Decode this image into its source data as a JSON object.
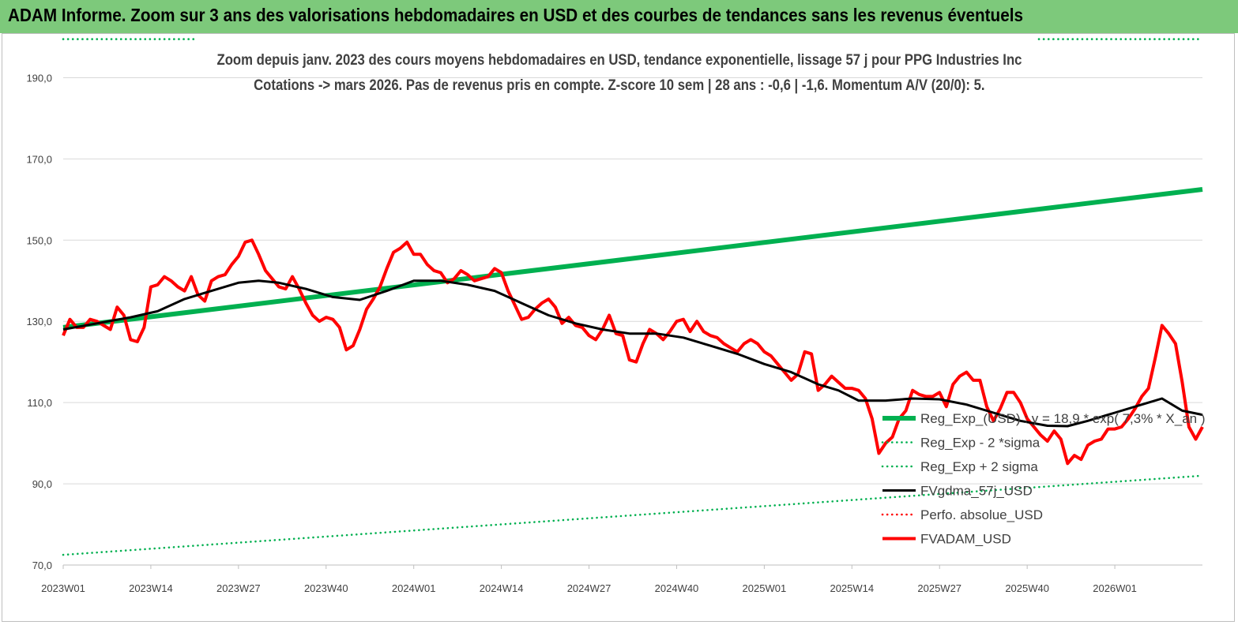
{
  "banner": {
    "title": "ADAM Informe. Zoom sur 3 ans des valorisations hebdomadaires en USD et des courbes de tendances sans les revenus éventuels"
  },
  "chart_data": {
    "type": "line",
    "title": "Zoom depuis janv. 2023 des cours moyens hebdomadaires en USD, tendance exponentielle, lissage 57 j pour PPG Industries Inc",
    "subtitle": "Cotations -> mars 2026. Pas de revenus pris en compte. Z-score 10 sem  | 28 ans : -0,6 | -1,6. Momentum A/V (20/0): 5.",
    "xlabel": "",
    "ylabel": "",
    "ylim": [
      70,
      200
    ],
    "yticks": [
      "70,0",
      "90,0",
      "110,0",
      "130,0",
      "150,0",
      "170,0",
      "190,0"
    ],
    "ytick_values": [
      70,
      90,
      110,
      130,
      150,
      170,
      190
    ],
    "xticks": [
      "2023W01",
      "2023W14",
      "2023W27",
      "2023W40",
      "2024W01",
      "2024W14",
      "2024W27",
      "2024W40",
      "2025W01",
      "2025W14",
      "2025W27",
      "2025W40",
      "2026W01"
    ],
    "xtick_index": [
      0,
      13,
      26,
      39,
      52,
      65,
      78,
      91,
      104,
      117,
      130,
      143,
      156
    ],
    "n_weeks": 170,
    "grid": "horizontal",
    "legend_position": "right",
    "series": [
      {
        "name": "Reg_Exp_(USD) : y = 18,9 * exp( 7,3% * X_an )",
        "color": "#00b050",
        "style": "solid",
        "points": [
          [
            0,
            128.5
          ],
          [
            169,
            162.5
          ]
        ]
      },
      {
        "name": "Reg_Exp - 2 *sigma",
        "color": "#00b050",
        "style": "dotted",
        "points": [
          [
            0,
            72.5
          ],
          [
            169,
            92.0
          ]
        ]
      },
      {
        "name": "Reg_Exp + 2 sigma",
        "color": "#00b050",
        "style": "dotted",
        "points": [
          [
            0,
            199.5
          ],
          [
            169,
            199.5
          ]
        ]
      },
      {
        "name": "FVgdma_57j_USD",
        "color": "#000000",
        "style": "solid",
        "points": [
          [
            0,
            128
          ],
          [
            5,
            129.5
          ],
          [
            10,
            131
          ],
          [
            14,
            132.5
          ],
          [
            18,
            135.5
          ],
          [
            22,
            137.5
          ],
          [
            26,
            139.5
          ],
          [
            29,
            140
          ],
          [
            32,
            139.5
          ],
          [
            36,
            138
          ],
          [
            40,
            136
          ],
          [
            44,
            135.3
          ],
          [
            48,
            137.5
          ],
          [
            52,
            140
          ],
          [
            56,
            140
          ],
          [
            60,
            139
          ],
          [
            64,
            137.5
          ],
          [
            68,
            134.5
          ],
          [
            72,
            131.5
          ],
          [
            76,
            129.5
          ],
          [
            80,
            128
          ],
          [
            84,
            127
          ],
          [
            88,
            127
          ],
          [
            92,
            126
          ],
          [
            96,
            124
          ],
          [
            100,
            122
          ],
          [
            104,
            119.5
          ],
          [
            108,
            117.5
          ],
          [
            112,
            114.5
          ],
          [
            115,
            113
          ],
          [
            118,
            110.5
          ],
          [
            122,
            110.5
          ],
          [
            126,
            111
          ],
          [
            130,
            110.8
          ],
          [
            134,
            109.5
          ],
          [
            138,
            107.5
          ],
          [
            142,
            105.5
          ],
          [
            146,
            104.3
          ],
          [
            149,
            104.2
          ],
          [
            152,
            105.5
          ],
          [
            156,
            107.5
          ],
          [
            160,
            109.5
          ],
          [
            163,
            111
          ],
          [
            166,
            108
          ],
          [
            169,
            107
          ]
        ]
      },
      {
        "name": "Perfo. absolue_USD",
        "color": "#ff0000",
        "style": "dotted",
        "points": []
      },
      {
        "name": "FVADAM_USD",
        "color": "#ff0000",
        "style": "solid",
        "points": [
          [
            0,
            126.5
          ],
          [
            1,
            130.5
          ],
          [
            2,
            128.5
          ],
          [
            3,
            128.5
          ],
          [
            4,
            130.5
          ],
          [
            5,
            130
          ],
          [
            6,
            129
          ],
          [
            7,
            128
          ],
          [
            8,
            133.5
          ],
          [
            9,
            131.5
          ],
          [
            10,
            125.5
          ],
          [
            11,
            125
          ],
          [
            12,
            128.5
          ],
          [
            13,
            138.5
          ],
          [
            14,
            139
          ],
          [
            15,
            141
          ],
          [
            16,
            140
          ],
          [
            17,
            138.5
          ],
          [
            18,
            137.5
          ],
          [
            19,
            141
          ],
          [
            20,
            136.5
          ],
          [
            21,
            135
          ],
          [
            22,
            140
          ],
          [
            23,
            141
          ],
          [
            24,
            141.5
          ],
          [
            25,
            144
          ],
          [
            26,
            146
          ],
          [
            27,
            149.5
          ],
          [
            28,
            150
          ],
          [
            29,
            146.5
          ],
          [
            30,
            142.5
          ],
          [
            31,
            140.5
          ],
          [
            32,
            138.5
          ],
          [
            33,
            138
          ],
          [
            34,
            141
          ],
          [
            35,
            138
          ],
          [
            36,
            134.5
          ],
          [
            37,
            131.5
          ],
          [
            38,
            130
          ],
          [
            39,
            131
          ],
          [
            40,
            130.5
          ],
          [
            41,
            128.5
          ],
          [
            42,
            123
          ],
          [
            43,
            124
          ],
          [
            44,
            128
          ],
          [
            45,
            133
          ],
          [
            46,
            135.5
          ],
          [
            47,
            138.5
          ],
          [
            48,
            143
          ],
          [
            49,
            147
          ],
          [
            50,
            148
          ],
          [
            51,
            149.5
          ],
          [
            52,
            146.5
          ],
          [
            53,
            146.5
          ],
          [
            54,
            144
          ],
          [
            55,
            142.5
          ],
          [
            56,
            142
          ],
          [
            57,
            139.5
          ],
          [
            58,
            140.5
          ],
          [
            59,
            142.5
          ],
          [
            60,
            141.5
          ],
          [
            61,
            140
          ],
          [
            62,
            140.5
          ],
          [
            63,
            141
          ],
          [
            64,
            143
          ],
          [
            65,
            142
          ],
          [
            66,
            137.5
          ],
          [
            67,
            134
          ],
          [
            68,
            130.5
          ],
          [
            69,
            131
          ],
          [
            70,
            133
          ],
          [
            71,
            134.5
          ],
          [
            72,
            135.5
          ],
          [
            73,
            133.5
          ],
          [
            74,
            129.5
          ],
          [
            75,
            131
          ],
          [
            76,
            129
          ],
          [
            77,
            128.5
          ],
          [
            78,
            126.5
          ],
          [
            79,
            125.5
          ],
          [
            80,
            128
          ],
          [
            81,
            131.5
          ],
          [
            82,
            127
          ],
          [
            83,
            126.5
          ],
          [
            84,
            120.5
          ],
          [
            85,
            120
          ],
          [
            86,
            124.5
          ],
          [
            87,
            128
          ],
          [
            88,
            127
          ],
          [
            89,
            125.5
          ],
          [
            90,
            127.5
          ],
          [
            91,
            130
          ],
          [
            92,
            130.5
          ],
          [
            93,
            127.5
          ],
          [
            94,
            130
          ],
          [
            95,
            127.5
          ],
          [
            96,
            126.5
          ],
          [
            97,
            126
          ],
          [
            98,
            124.5
          ],
          [
            99,
            123.5
          ],
          [
            100,
            122.5
          ],
          [
            101,
            124.5
          ],
          [
            102,
            125.5
          ],
          [
            103,
            124.5
          ],
          [
            104,
            122.5
          ],
          [
            105,
            121.5
          ],
          [
            106,
            119.5
          ],
          [
            107,
            117.5
          ],
          [
            108,
            115.5
          ],
          [
            109,
            117
          ],
          [
            110,
            122.5
          ],
          [
            111,
            122
          ],
          [
            112,
            113
          ],
          [
            113,
            114.5
          ],
          [
            114,
            116.5
          ],
          [
            115,
            115
          ],
          [
            116,
            113.5
          ],
          [
            117,
            113.5
          ],
          [
            118,
            113
          ],
          [
            119,
            111
          ],
          [
            120,
            106
          ],
          [
            121,
            97.5
          ],
          [
            122,
            100
          ],
          [
            123,
            101.5
          ],
          [
            124,
            106
          ],
          [
            125,
            108
          ],
          [
            126,
            113
          ],
          [
            127,
            112
          ],
          [
            128,
            111.5
          ],
          [
            129,
            111.5
          ],
          [
            130,
            112.5
          ],
          [
            131,
            109
          ],
          [
            132,
            114.5
          ],
          [
            133,
            116.5
          ],
          [
            134,
            117.5
          ],
          [
            135,
            115.5
          ],
          [
            136,
            115.5
          ],
          [
            137,
            109
          ],
          [
            138,
            105.5
          ],
          [
            139,
            108.5
          ],
          [
            140,
            112.5
          ],
          [
            141,
            112.5
          ],
          [
            142,
            110
          ],
          [
            143,
            106
          ],
          [
            144,
            104
          ],
          [
            145,
            102
          ],
          [
            146,
            100.5
          ],
          [
            147,
            103
          ],
          [
            148,
            101
          ],
          [
            149,
            95
          ],
          [
            150,
            97
          ],
          [
            151,
            96
          ],
          [
            152,
            99.5
          ],
          [
            153,
            100.5
          ],
          [
            154,
            101
          ],
          [
            155,
            103.5
          ],
          [
            156,
            103.5
          ],
          [
            157,
            104
          ],
          [
            158,
            106
          ],
          [
            159,
            108.5
          ],
          [
            160,
            111.5
          ],
          [
            161,
            113.5
          ],
          [
            162,
            121
          ],
          [
            163,
            129
          ],
          [
            164,
            127
          ],
          [
            165,
            124.5
          ],
          [
            166,
            115
          ],
          [
            167,
            104
          ],
          [
            168,
            101
          ],
          [
            169,
            104
          ]
        ]
      }
    ]
  }
}
